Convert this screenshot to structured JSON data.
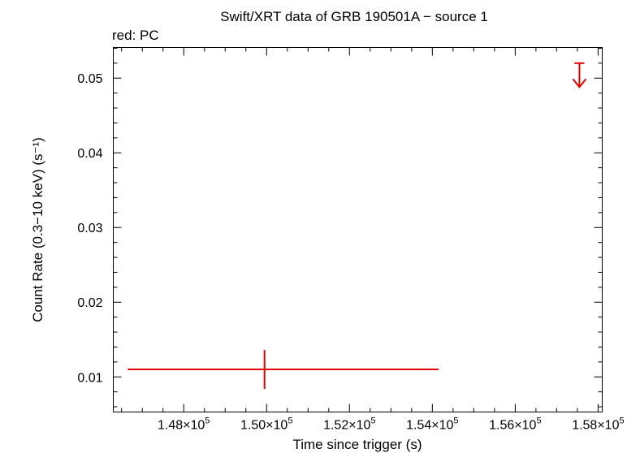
{
  "chart_data": {
    "type": "scatter",
    "title": "Swift/XRT data of GRB 190501A − source 1",
    "subtitle": "red: PC",
    "xlabel": "Time since trigger (s)",
    "ylabel": "Count Rate (0.3−10 keV) (s⁻¹)",
    "xlim": [
      146300,
      158100
    ],
    "ylim": [
      0.0053,
      0.0541
    ],
    "grid": false,
    "x_ticks": [
      {
        "value": 148000,
        "mantissa": "1.48",
        "exponent": "5"
      },
      {
        "value": 150000,
        "mantissa": "1.50",
        "exponent": "5"
      },
      {
        "value": 152000,
        "mantissa": "1.52",
        "exponent": "5"
      },
      {
        "value": 154000,
        "mantissa": "1.54",
        "exponent": "5"
      },
      {
        "value": 156000,
        "mantissa": "1.56",
        "exponent": "5"
      },
      {
        "value": 158000,
        "mantissa": "1.58",
        "exponent": "5"
      }
    ],
    "x_minor_step": 500,
    "y_ticks": [
      {
        "value": 0.01,
        "label": "0.01"
      },
      {
        "value": 0.02,
        "label": "0.02"
      },
      {
        "value": 0.03,
        "label": "0.03"
      },
      {
        "value": 0.04,
        "label": "0.04"
      },
      {
        "value": 0.05,
        "label": "0.05"
      }
    ],
    "y_minor_step": 0.002,
    "series": [
      {
        "color": "#e00000",
        "points": [
          {
            "x": 149950,
            "y": 0.011,
            "xerr_low": 3300,
            "xerr_high": 4200,
            "yerr_low": 0.0026,
            "yerr_high": 0.0026
          }
        ],
        "upper_limits": [
          {
            "x": 157550,
            "y": 0.052,
            "xerr_low": 120,
            "xerr_high": 120,
            "arrow_to": 0.0488
          }
        ]
      }
    ]
  }
}
